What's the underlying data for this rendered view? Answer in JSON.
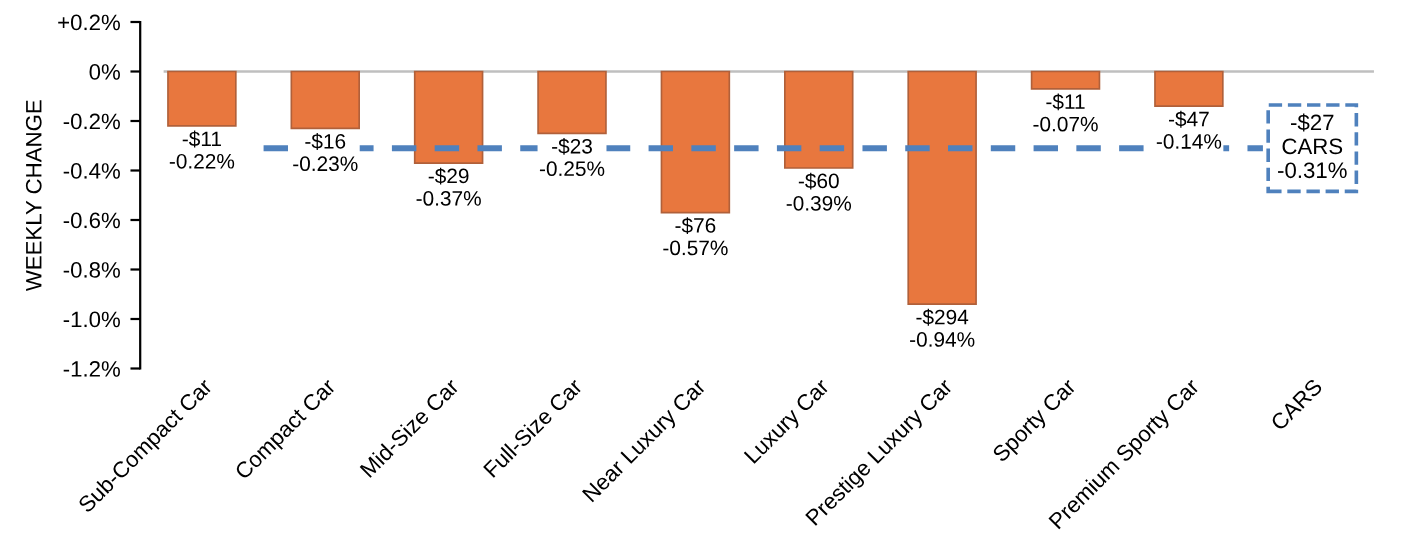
{
  "chart_data": {
    "type": "bar",
    "ylabel": "WEEKLY CHANGE",
    "categories": [
      "Sub-Compact Car",
      "Compact Car",
      "Mid-Size Car",
      "Full-Size Car",
      "Near Luxury Car",
      "Luxury Car",
      "Prestige Luxury Car",
      "Sporty Car",
      "Premium Sporty Car",
      "CARS"
    ],
    "values": [
      -0.22,
      -0.23,
      -0.37,
      -0.25,
      -0.57,
      -0.39,
      -0.94,
      -0.07,
      -0.14,
      null
    ],
    "value_labels": [
      "-$11\n-0.22%",
      "-$16\n-0.23%",
      "-$29\n-0.37%",
      "-$23\n-0.25%",
      "-$76\n-0.57%",
      "-$60\n-0.39%",
      "-$294\n-0.94%",
      "-$11\n-0.07%",
      "-$47\n-0.14%",
      null
    ],
    "color": "#e8773e",
    "ylim": [
      -1.2,
      0.2
    ],
    "yticks": [
      {
        "value": 0.2,
        "label": "+0.2%"
      },
      {
        "value": 0,
        "label": "0%"
      },
      {
        "value": -0.2,
        "label": "-0.2%"
      },
      {
        "value": -0.4,
        "label": "-0.4%"
      },
      {
        "value": -0.6,
        "label": "-0.6%"
      },
      {
        "value": -0.8,
        "label": "-0.8%"
      },
      {
        "value": -1.0,
        "label": "-1.0%"
      },
      {
        "value": -1.2,
        "label": "-1.2%"
      }
    ],
    "ref_lines": [
      {
        "axis": "y",
        "value": 0,
        "color": "#bfbfbf",
        "line_style": "solid"
      },
      {
        "axis": "y",
        "value": -0.31,
        "label": "-$27\nCARS\n-0.31%",
        "color": "#4f81bd",
        "line_style": "dashed"
      }
    ],
    "grid": false
  }
}
